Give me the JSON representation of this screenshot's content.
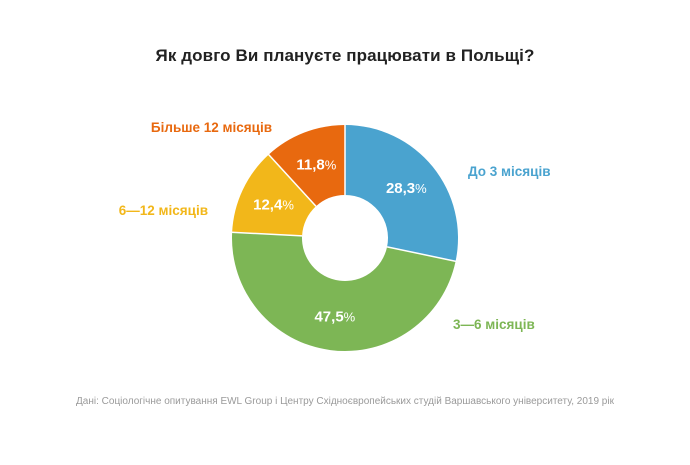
{
  "chart_data": {
    "type": "pie",
    "variant": "donut",
    "title": "Як довго Ви плануєте працювати в Польщі?",
    "categories": [
      "До 3 місяців",
      "3—6 місяців",
      "6—12 місяців",
      "Більше 12 місяців"
    ],
    "values": [
      28.3,
      47.5,
      12.4,
      11.8
    ],
    "value_labels": [
      "28,3",
      "47,5",
      "12,4",
      "11,8"
    ],
    "value_suffix": "%",
    "colors": [
      "#4aa3cf",
      "#7db655",
      "#f2b71a",
      "#e8690f"
    ],
    "start": "12 o'clock, clockwise"
  },
  "source": "Дані: Соціологічне опитування EWL Group і Центру Східноєвропейських студій Варшавського університету, 2019 рік"
}
